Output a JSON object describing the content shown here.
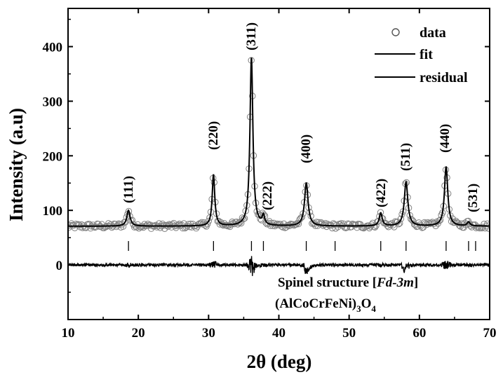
{
  "chart_data": {
    "type": "line",
    "xlabel": "2θ (deg)",
    "ylabel": "Intensity (a.u)",
    "xlim": [
      10,
      70
    ],
    "ylim": [
      -100,
      470
    ],
    "x_ticks": [
      10,
      20,
      30,
      40,
      50,
      60,
      70
    ],
    "y_ticks": [
      0,
      100,
      200,
      300,
      400
    ],
    "grid": false,
    "legend": {
      "placement": "top-right",
      "entries": [
        {
          "label": "data",
          "marker": "open-circle"
        },
        {
          "label": "fit",
          "marker": "line"
        },
        {
          "label": "residual",
          "marker": "line"
        }
      ]
    },
    "background": 71,
    "peaks": [
      {
        "label": "(111)",
        "x": 18.6,
        "y": 100
      },
      {
        "label": "(220)",
        "x": 30.7,
        "y": 165
      },
      {
        "label": "(311)",
        "x": 36.1,
        "y": 380
      },
      {
        "label": "(222)",
        "x": 37.8,
        "y": 88
      },
      {
        "label": "(400)",
        "x": 43.9,
        "y": 150
      },
      {
        "label": "(422)",
        "x": 54.5,
        "y": 95
      },
      {
        "label": "(511)",
        "x": 58.1,
        "y": 152
      },
      {
        "label": "(440)",
        "x": 63.8,
        "y": 180
      },
      {
        "label": "(531)",
        "x": 67.0,
        "y": 78
      }
    ],
    "bragg_ticks": [
      18.6,
      30.7,
      36.1,
      37.8,
      43.9,
      48.0,
      54.5,
      58.1,
      63.8,
      67.0,
      68.0
    ],
    "residual_offset": 0,
    "annotation": {
      "line1_prefix": "Spinel structure [",
      "line1_space_group": "Fd-3m",
      "line1_suffix": "]",
      "line2_formula": "(AlCoCrFeNi)",
      "line2_sub1": "3",
      "line2_o": "O",
      "line2_sub2": "4"
    },
    "colors": {
      "data": "#808080",
      "fit": "#000000",
      "residual": "#000000"
    }
  }
}
